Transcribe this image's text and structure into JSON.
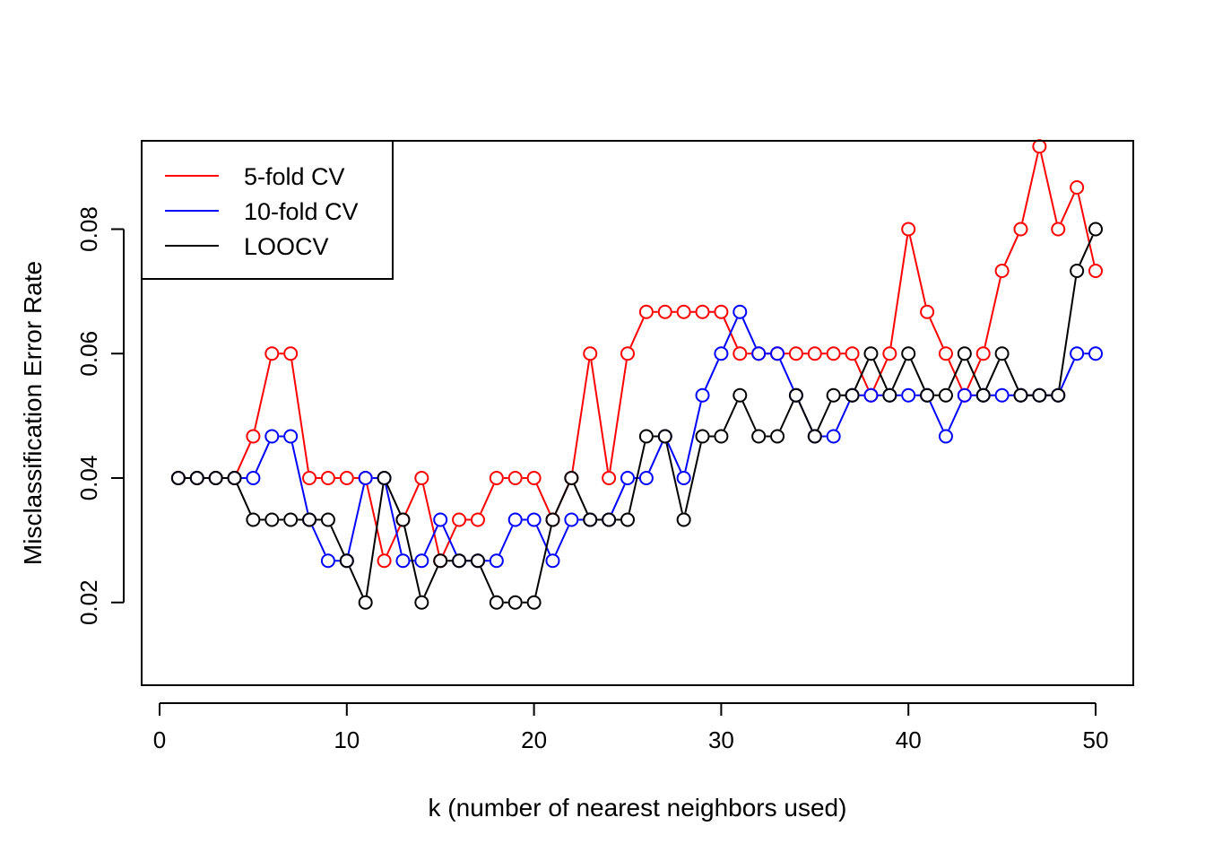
{
  "chart_data": {
    "type": "line",
    "xlabel": "k (number of nearest neighbors used)",
    "ylabel": "Misclassification Error Rate",
    "xlim": [
      0,
      50
    ],
    "ylim": [
      0.0067,
      0.0942
    ],
    "x_ticks": [
      0,
      10,
      20,
      30,
      40,
      50
    ],
    "y_ticks": [
      0.02,
      0.04,
      0.06,
      0.08
    ],
    "x_tick_labels": [
      "0",
      "10",
      "20",
      "30",
      "40",
      "50"
    ],
    "y_tick_labels": [
      "0.02",
      "0.04",
      "0.06",
      "0.08"
    ],
    "grid": false,
    "legend_position": "top-left",
    "markers": "open-circle",
    "x": [
      1,
      2,
      3,
      4,
      5,
      6,
      7,
      8,
      9,
      10,
      11,
      12,
      13,
      14,
      15,
      16,
      17,
      18,
      19,
      20,
      21,
      22,
      23,
      24,
      25,
      26,
      27,
      28,
      29,
      30,
      31,
      32,
      33,
      34,
      35,
      36,
      37,
      38,
      39,
      40,
      41,
      42,
      43,
      44,
      45,
      46,
      47,
      48,
      49,
      50
    ],
    "series": [
      {
        "name": "5-fold CV",
        "color": "#ff0000",
        "values": [
          0.04,
          0.04,
          0.04,
          0.04,
          0.0467,
          0.06,
          0.06,
          0.04,
          0.04,
          0.04,
          0.04,
          0.0267,
          0.0333,
          0.04,
          0.0267,
          0.0333,
          0.0333,
          0.04,
          0.04,
          0.04,
          0.0333,
          0.04,
          0.06,
          0.04,
          0.06,
          0.0667,
          0.0667,
          0.0667,
          0.0667,
          0.0667,
          0.06,
          0.06,
          0.06,
          0.06,
          0.06,
          0.06,
          0.06,
          0.0533,
          0.06,
          0.08,
          0.0667,
          0.06,
          0.0533,
          0.06,
          0.0733,
          0.08,
          0.0933,
          0.08,
          0.0867,
          0.0733
        ]
      },
      {
        "name": "10-fold CV",
        "color": "#0000ff",
        "values": [
          0.04,
          0.04,
          0.04,
          0.04,
          0.04,
          0.0467,
          0.0467,
          0.0333,
          0.0267,
          0.0267,
          0.04,
          0.04,
          0.0267,
          0.0267,
          0.0333,
          0.0267,
          0.0267,
          0.0267,
          0.0333,
          0.0333,
          0.0267,
          0.0333,
          0.0333,
          0.0333,
          0.04,
          0.04,
          0.0467,
          0.04,
          0.0533,
          0.06,
          0.0667,
          0.06,
          0.06,
          0.0533,
          0.0467,
          0.0467,
          0.0533,
          0.0533,
          0.0533,
          0.0533,
          0.0533,
          0.0467,
          0.0533,
          0.0533,
          0.0533,
          0.0533,
          0.0533,
          0.0533,
          0.06,
          0.06
        ]
      },
      {
        "name": "LOOCV",
        "color": "#000000",
        "values": [
          0.04,
          0.04,
          0.04,
          0.04,
          0.0333,
          0.0333,
          0.0333,
          0.0333,
          0.0333,
          0.0267,
          0.02,
          0.04,
          0.0333,
          0.02,
          0.0267,
          0.0267,
          0.0267,
          0.02,
          0.02,
          0.02,
          0.0333,
          0.04,
          0.0333,
          0.0333,
          0.0333,
          0.0467,
          0.0467,
          0.0333,
          0.0467,
          0.0467,
          0.0533,
          0.0467,
          0.0467,
          0.0533,
          0.0467,
          0.0533,
          0.0533,
          0.06,
          0.0533,
          0.06,
          0.0533,
          0.0533,
          0.06,
          0.0533,
          0.06,
          0.0533,
          0.0533,
          0.0533,
          0.0733,
          0.08
        ]
      }
    ]
  }
}
